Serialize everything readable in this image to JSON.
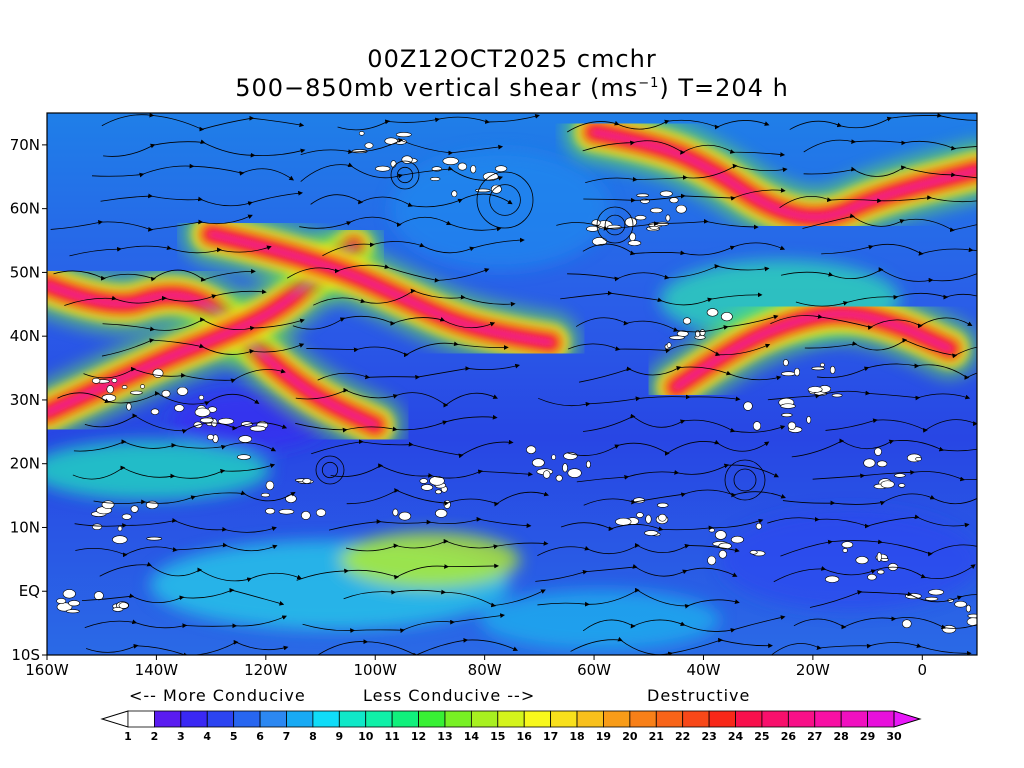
{
  "title": {
    "line1": "00Z12OCT2025 cmchr",
    "line2_pre": "500−850mb vertical shear (ms",
    "line2_sup": "−1",
    "line2_post": ") T=204 h"
  },
  "map": {
    "lon_range": [
      -160,
      10
    ],
    "lat_range": [
      -10,
      75
    ],
    "x_ticks": [
      {
        "lon": -160,
        "label": "160W"
      },
      {
        "lon": -140,
        "label": "140W"
      },
      {
        "lon": -120,
        "label": "120W"
      },
      {
        "lon": -100,
        "label": "100W"
      },
      {
        "lon": -80,
        "label": "80W"
      },
      {
        "lon": -60,
        "label": "60W"
      },
      {
        "lon": -40,
        "label": "40W"
      },
      {
        "lon": -20,
        "label": "20W"
      },
      {
        "lon": 0,
        "label": "0"
      }
    ],
    "y_ticks": [
      {
        "lat": -10,
        "label": "10S"
      },
      {
        "lat": 0,
        "label": "EQ"
      },
      {
        "lat": 10,
        "label": "10N"
      },
      {
        "lat": 20,
        "label": "20N"
      },
      {
        "lat": 30,
        "label": "30N"
      },
      {
        "lat": 40,
        "label": "40N"
      },
      {
        "lat": 50,
        "label": "50N"
      },
      {
        "lat": 60,
        "label": "60N"
      },
      {
        "lat": 70,
        "label": "70N"
      }
    ],
    "high_shear_bands": [
      {
        "name": "north-pacific-jet",
        "lonlat": [
          [
            -160,
            48
          ],
          [
            -148,
            44
          ],
          [
            -138,
            47
          ],
          [
            -130,
            45
          ],
          [
            -124,
            40
          ],
          [
            -118,
            35
          ],
          [
            -110,
            30
          ],
          [
            -100,
            26
          ]
        ]
      },
      {
        "name": "west-coast-jet",
        "lonlat": [
          [
            -160,
            28
          ],
          [
            -140,
            36
          ],
          [
            -128,
            40
          ],
          [
            -118,
            44
          ],
          [
            -110,
            50
          ],
          [
            -104,
            54
          ]
        ]
      },
      {
        "name": "north-america-jet",
        "lonlat": [
          [
            -130,
            56
          ],
          [
            -120,
            54
          ],
          [
            -105,
            50
          ],
          [
            -95,
            46
          ],
          [
            -85,
            42
          ],
          [
            -75,
            40
          ],
          [
            -68,
            39
          ]
        ]
      },
      {
        "name": "north-atlantic-jet",
        "lonlat": [
          [
            -60,
            72
          ],
          [
            -48,
            70
          ],
          [
            -38,
            66
          ],
          [
            -28,
            60
          ],
          [
            -18,
            58
          ],
          [
            -8,
            62
          ],
          [
            10,
            66
          ]
        ]
      },
      {
        "name": "mid-atlantic-band",
        "lonlat": [
          [
            -45,
            32
          ],
          [
            -35,
            38
          ],
          [
            -25,
            42
          ],
          [
            -15,
            44
          ],
          [
            -5,
            42
          ],
          [
            5,
            38
          ]
        ]
      }
    ]
  },
  "labels": {
    "more_conducive": "<-- More Conducive",
    "less_conducive": "Less Conducive -->",
    "destructive": "Destructive"
  },
  "colorbar": {
    "labels": [
      "1",
      "2",
      "3",
      "4",
      "5",
      "6",
      "7",
      "8",
      "9",
      "10",
      "11",
      "12",
      "13",
      "14",
      "15",
      "16",
      "17",
      "18",
      "19",
      "20",
      "21",
      "22",
      "23",
      "24",
      "25",
      "26",
      "27",
      "28",
      "29",
      "30"
    ],
    "colors": [
      "#ffffff",
      "#5a1cf0",
      "#3a28f4",
      "#2c44f2",
      "#2866f0",
      "#2c88f2",
      "#18aaf4",
      "#10dcf8",
      "#10e8c8",
      "#10f0a8",
      "#10f07c",
      "#38f034",
      "#78f024",
      "#a8f020",
      "#d4f41c",
      "#f8f81c",
      "#f8e01c",
      "#f8c01c",
      "#f89c18",
      "#f88018",
      "#f86418",
      "#f84818",
      "#f82818",
      "#f8104c",
      "#f8106c",
      "#f81088",
      "#f810a4",
      "#f010c0",
      "#e810dc"
    ],
    "under_color": "#ffffff",
    "over_color": "#e818f8"
  }
}
